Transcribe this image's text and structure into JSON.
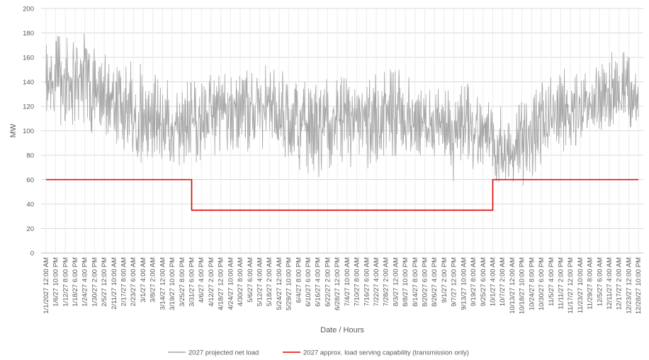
{
  "chart_data": {
    "type": "line",
    "title": "",
    "xlabel": "Date / Hours",
    "ylabel": "MW",
    "ylim": [
      0,
      200
    ],
    "y_ticks": [
      0,
      20,
      40,
      60,
      80,
      100,
      120,
      140,
      160,
      180,
      200
    ],
    "grid": true,
    "legend_position": "bottom",
    "x_tick_labels": [
      "1/1/2027 12:00 AM",
      "1/6/27 10:00 PM",
      "1/12/27 8:00 PM",
      "1/18/27 6:00 PM",
      "1/24/27 4:00 PM",
      "1/30/27 2:00 PM",
      "2/5/27 12:00 PM",
      "2/11/27 10:00 AM",
      "2/17/27 8:00 AM",
      "2/23/27 6:00 AM",
      "3/1/27 4:00 AM",
      "3/8/27 2:00 AM",
      "3/14/27 12:00 AM",
      "3/19/27 10:00 PM",
      "3/25/27 8:00 PM",
      "3/31/27 6:00 PM",
      "4/6/27 4:00 PM",
      "4/12/27 2:00 PM",
      "4/18/27 12:00 PM",
      "4/24/27 10:00 AM",
      "4/30/27 8:00 AM",
      "5/6/27 6:00 AM",
      "5/12/27 4:00 AM",
      "5/18/27 2:00 AM",
      "5/24/27 12:00 AM",
      "5/29/27 10:00 PM",
      "6/4/27 8:00 PM",
      "6/10/27 6:00 PM",
      "6/16/27 4:00 PM",
      "6/22/27 2:00 PM",
      "6/28/27 12:00 PM",
      "7/4/27 10:00 AM",
      "7/10/27 8:00 AM",
      "7/16/27 6:00 AM",
      "7/22/27 4:00 AM",
      "7/28/27 2:00 AM",
      "8/3/27 12:00 AM",
      "8/8/27 10:00 PM",
      "8/14/27 8:00 PM",
      "8/20/27 6:00 PM",
      "8/26/27 4:00 PM",
      "9/1/27 2:00 PM",
      "9/7/27 12:00 PM",
      "9/13/27 10:00 AM",
      "9/19/27 8:00 AM",
      "9/25/27 6:00 AM",
      "10/1/27 4:00 AM",
      "10/7/27 2:00 AM",
      "10/13/27 12:00 AM",
      "10/18/27 10:00 PM",
      "10/24/27 8:00 PM",
      "10/30/27 6:00 PM",
      "11/5/27 4:00 PM",
      "11/11/27 2:00 PM",
      "11/17/27 12:00 PM",
      "11/23/27 10:00 AM",
      "11/29/27 8:00 AM",
      "12/5/27 6:00 AM",
      "12/11/27 4:00 AM",
      "12/17/27 2:00 AM",
      "12/23/27 12:00 AM",
      "12/28/27 10:00 PM"
    ],
    "series": [
      {
        "name": "2027 projected net load",
        "color": "#a6a6a6",
        "style": "hourly-noisy",
        "envelope": [
          {
            "x": "1/1/2027 12:00 AM",
            "low": 95,
            "mid": 130,
            "high": 170
          },
          {
            "x": "1/12/27 8:00 PM",
            "low": 105,
            "mid": 140,
            "high": 183
          },
          {
            "x": "1/24/27 4:00 PM",
            "low": 100,
            "mid": 140,
            "high": 180
          },
          {
            "x": "2/5/27 12:00 PM",
            "low": 92,
            "mid": 132,
            "high": 165
          },
          {
            "x": "2/17/27 8:00 AM",
            "low": 85,
            "mid": 118,
            "high": 158
          },
          {
            "x": "3/1/27 4:00 AM",
            "low": 72,
            "mid": 108,
            "high": 155
          },
          {
            "x": "3/14/27 12:00 AM",
            "low": 70,
            "mid": 104,
            "high": 142
          },
          {
            "x": "3/25/27 8:00 PM",
            "low": 72,
            "mid": 105,
            "high": 140
          },
          {
            "x": "4/6/27 4:00 PM",
            "low": 75,
            "mid": 110,
            "high": 146
          },
          {
            "x": "4/18/27 12:00 PM",
            "low": 78,
            "mid": 115,
            "high": 145
          },
          {
            "x": "4/30/27 8:00 AM",
            "low": 82,
            "mid": 120,
            "high": 153
          },
          {
            "x": "5/12/27 4:00 AM",
            "low": 85,
            "mid": 122,
            "high": 156
          },
          {
            "x": "5/24/27 12:00 AM",
            "low": 82,
            "mid": 118,
            "high": 150
          },
          {
            "x": "6/4/27 8:00 PM",
            "low": 68,
            "mid": 105,
            "high": 142
          },
          {
            "x": "6/16/27 4:00 PM",
            "low": 62,
            "mid": 102,
            "high": 140
          },
          {
            "x": "6/28/27 12:00 PM",
            "low": 70,
            "mid": 108,
            "high": 145
          },
          {
            "x": "7/10/27 8:00 AM",
            "low": 66,
            "mid": 104,
            "high": 140
          },
          {
            "x": "7/22/27 4:00 AM",
            "low": 70,
            "mid": 108,
            "high": 148
          },
          {
            "x": "8/3/27 12:00 AM",
            "low": 78,
            "mid": 112,
            "high": 152
          },
          {
            "x": "8/14/27 8:00 PM",
            "low": 80,
            "mid": 108,
            "high": 140
          },
          {
            "x": "8/26/27 4:00 PM",
            "low": 78,
            "mid": 106,
            "high": 142
          },
          {
            "x": "9/7/27 12:00 PM",
            "low": 55,
            "mid": 96,
            "high": 135
          },
          {
            "x": "9/19/27 8:00 AM",
            "low": 62,
            "mid": 100,
            "high": 140
          },
          {
            "x": "10/1/27 4:00 AM",
            "low": 60,
            "mid": 92,
            "high": 125
          },
          {
            "x": "10/13/27 12:00 AM",
            "low": 52,
            "mid": 85,
            "high": 118
          },
          {
            "x": "10/24/27 8:00 PM",
            "low": 58,
            "mid": 95,
            "high": 130
          },
          {
            "x": "11/5/27 4:00 PM",
            "low": 80,
            "mid": 115,
            "high": 148
          },
          {
            "x": "11/17/27 12:00 PM",
            "low": 85,
            "mid": 118,
            "high": 152
          },
          {
            "x": "11/29/27 8:00 AM",
            "low": 88,
            "mid": 120,
            "high": 155
          },
          {
            "x": "12/11/27 4:00 AM",
            "low": 100,
            "mid": 135,
            "high": 170
          },
          {
            "x": "12/23/27 12:00 AM",
            "low": 98,
            "mid": 130,
            "high": 165
          },
          {
            "x": "12/28/27 10:00 PM",
            "low": 92,
            "mid": 118,
            "high": 148
          }
        ]
      },
      {
        "name": "2027 approx. load serving  capability (transmission only)",
        "color": "#e00000",
        "style": "step",
        "points": [
          {
            "x": "1/1/2027 12:00 AM",
            "y": 60
          },
          {
            "x": "3/31/27 6:00 PM",
            "y": 60
          },
          {
            "x": "3/31/27 6:00 PM",
            "y": 35
          },
          {
            "x": "10/1/27 4:00 AM",
            "y": 35
          },
          {
            "x": "10/1/27 4:00 AM",
            "y": 60
          },
          {
            "x": "12/28/27 10:00 PM",
            "y": 60
          }
        ]
      }
    ]
  }
}
